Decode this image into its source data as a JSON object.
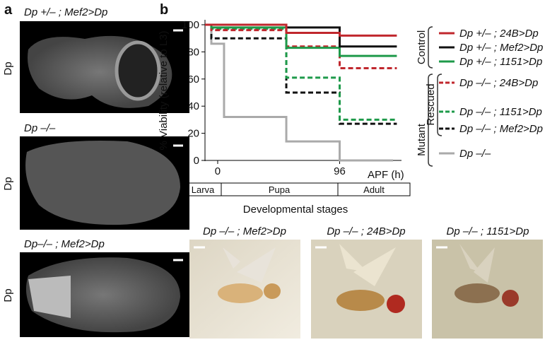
{
  "panel_a": {
    "label": "a",
    "images": [
      {
        "caption": "Dp +/– ; Mef2>Dp",
        "side": "Dp"
      },
      {
        "caption": "Dp –/–",
        "side": "Dp"
      },
      {
        "caption": "Dp–/– ; Mef2>Dp",
        "side": "Dp"
      }
    ]
  },
  "panel_b": {
    "label": "b",
    "groups": {
      "control": "Control",
      "rescued": "Rescued",
      "mutant": "Mutant"
    },
    "stages": {
      "title": "Developmental stages",
      "names": [
        "Larva",
        "Pupa",
        "Adult"
      ]
    },
    "photos": [
      {
        "caption": "Dp –/– ; Mef2>Dp",
        "color": "#111111"
      },
      {
        "caption": "Dp –/– ; 24B>Dp",
        "color": "#c0272d"
      },
      {
        "caption": "Dp –/– ; 1151>Dp",
        "color": "#1e9a4a"
      }
    ]
  },
  "chart_data": {
    "type": "step",
    "y_label": "% Viability (relative to L3)",
    "x_label": "APF (h)",
    "xlim": [
      -10,
      143
    ],
    "ylim": [
      0,
      100
    ],
    "xticks": [
      0,
      96
    ],
    "yticks": [
      0,
      20,
      40,
      60,
      80,
      100
    ],
    "series": [
      {
        "name": "Dp +/– ; 24B>Dp",
        "color": "#c0272d",
        "dash": false,
        "x": [
          -10,
          54,
          96,
          141
        ],
        "values": [
          100,
          94,
          92,
          92
        ]
      },
      {
        "name": "Dp +/– ; Mef2>Dp",
        "color": "#111111",
        "dash": false,
        "x": [
          -10,
          54,
          96,
          141
        ],
        "values": [
          100,
          98,
          84,
          84
        ]
      },
      {
        "name": "Dp +/– ; 1151>Dp",
        "color": "#1e9a4a",
        "dash": false,
        "x": [
          -10,
          -5,
          54,
          96,
          141
        ],
        "values": [
          100,
          98,
          83,
          77,
          77
        ]
      },
      {
        "name": "Dp –/– ; 24B>Dp",
        "color": "#c0272d",
        "dash": true,
        "x": [
          -10,
          -5,
          54,
          96,
          141
        ],
        "values": [
          100,
          96,
          84,
          68,
          68
        ]
      },
      {
        "name": "Dp –/– ; 1151>Dp",
        "color": "#1e9a4a",
        "dash": true,
        "x": [
          -10,
          -5,
          54,
          96,
          141
        ],
        "values": [
          100,
          97,
          61,
          30,
          30
        ]
      },
      {
        "name": "Dp –/– ; Mef2>Dp",
        "color": "#111111",
        "dash": true,
        "x": [
          -10,
          -5,
          54,
          96,
          141
        ],
        "values": [
          100,
          90,
          50,
          27,
          27
        ]
      },
      {
        "name": "Dp –/–",
        "color": "#aaaaaa",
        "dash": false,
        "x": [
          -10,
          -5,
          5,
          54,
          96,
          138
        ],
        "values": [
          100,
          86,
          32,
          14,
          0,
          0
        ]
      }
    ]
  }
}
